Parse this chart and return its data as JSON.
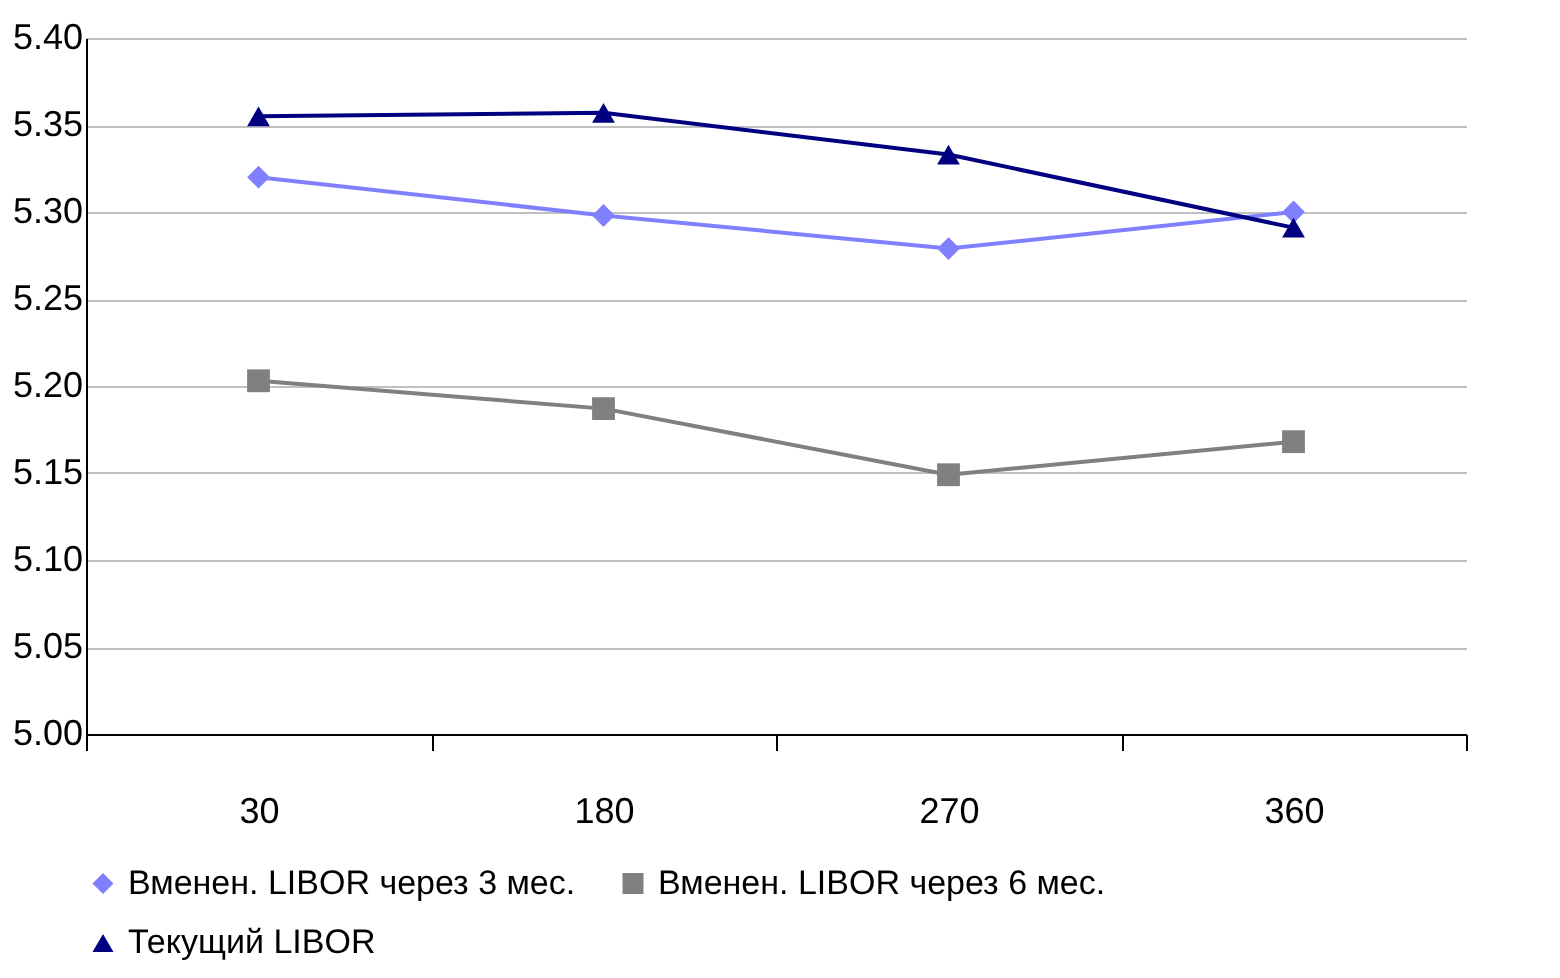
{
  "chart_data": {
    "type": "line",
    "categories": [
      "30",
      "180",
      "270",
      "360"
    ],
    "series": [
      {
        "name": "Вменен. LIBOR через 3 мес.",
        "color": "#8080ff",
        "marker": "diamond",
        "values": [
          5.32,
          5.298,
          5.279,
          5.3
        ]
      },
      {
        "name": "Вменен. LIBOR через 6 мес.",
        "color": "#808080",
        "marker": "square",
        "values": [
          5.203,
          5.187,
          5.149,
          5.168
        ]
      },
      {
        "name": "Текущий LIBOR",
        "color": "#000080",
        "marker": "triangle",
        "values": [
          5.355,
          5.357,
          5.333,
          5.291
        ]
      }
    ],
    "ylim": [
      5.0,
      5.4
    ],
    "yticks": [
      {
        "value": 5.0,
        "label": "5.00"
      },
      {
        "value": 5.05,
        "label": "5.05"
      },
      {
        "value": 5.1,
        "label": "5.10"
      },
      {
        "value": 5.15,
        "label": "5.15"
      },
      {
        "value": 5.2,
        "label": "5.20"
      },
      {
        "value": 5.25,
        "label": "5.25"
      },
      {
        "value": 5.3,
        "label": "5.30"
      },
      {
        "value": 5.35,
        "label": "5.35"
      },
      {
        "value": 5.4,
        "label": "5.40"
      }
    ],
    "grid": "y",
    "legend": "bottom",
    "line_style": "solid"
  }
}
